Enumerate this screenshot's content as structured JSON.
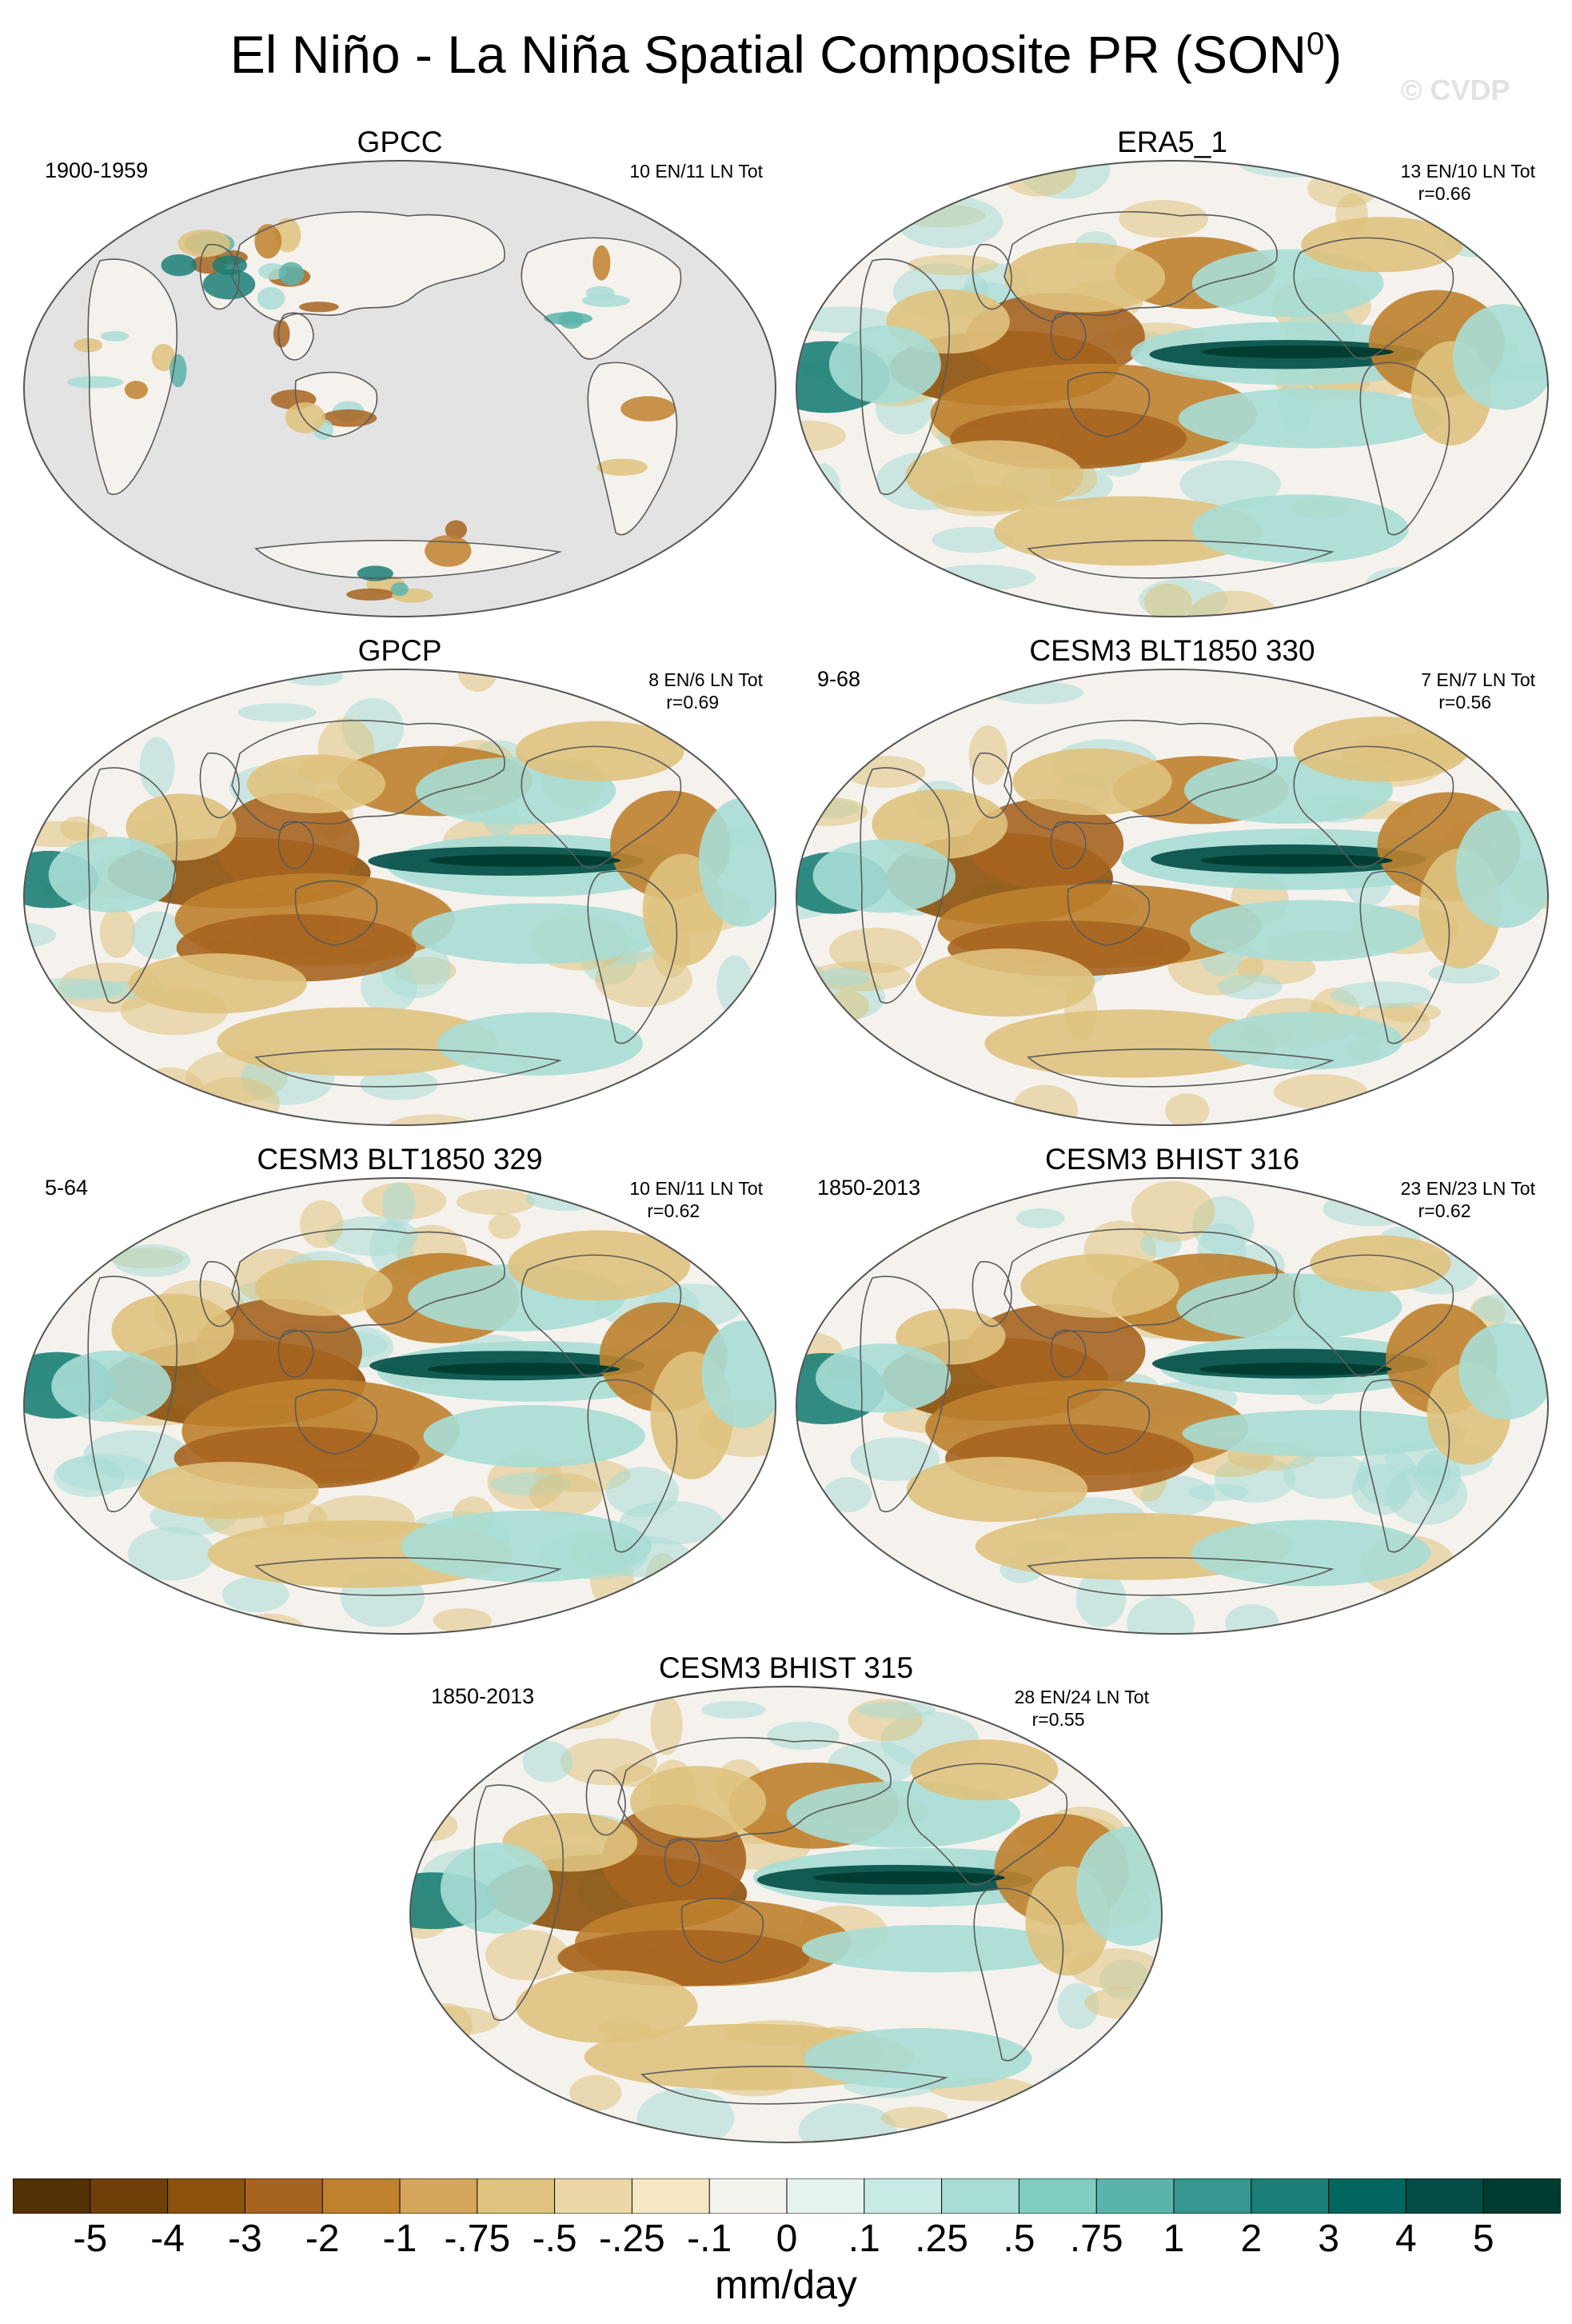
{
  "title": "El Niño - La Niña Spatial Composite PR (SON",
  "title_sup": "0",
  "title_close": ")",
  "watermark": "© CVDP",
  "colors": {
    "land_mask": "#e3e3e3",
    "coastline": "#5a5a5a",
    "outline": "#555555",
    "neutral": "#f5f2ee"
  },
  "panels": [
    {
      "title": "GPCC",
      "years": "1900-1959",
      "counts": "10 EN/11 LN Tot",
      "r": "",
      "ocean_masked": true
    },
    {
      "title": "ERA5_1",
      "years": "",
      "counts": "13 EN/10 LN Tot",
      "r": "r=0.66",
      "ocean_masked": false
    },
    {
      "title": "GPCP",
      "years": "",
      "counts": "8 EN/6 LN Tot",
      "r": "r=0.69",
      "ocean_masked": false
    },
    {
      "title": "CESM3 BLT1850 330",
      "years": "9-68",
      "counts": "7 EN/7 LN Tot",
      "r": "r=0.56",
      "ocean_masked": false
    },
    {
      "title": "CESM3 BLT1850 329",
      "years": "5-64",
      "counts": "10 EN/11 LN Tot",
      "r": "r=0.62",
      "ocean_masked": false
    },
    {
      "title": "CESM3 BHIST 316",
      "years": "1850-2013",
      "counts": "23 EN/23 LN Tot",
      "r": "r=0.62",
      "ocean_masked": false
    },
    {
      "title": "CESM3 BHIST 315",
      "years": "1850-2013",
      "counts": "28 EN/24 LN Tot",
      "r": "r=0.55",
      "ocean_masked": false
    }
  ],
  "colorbar": {
    "units": "mm/day",
    "labels": [
      "-5",
      "-4",
      "-3",
      "-2",
      "-1",
      "-.75",
      "-.5",
      "-.25",
      "-.1",
      "0",
      ".1",
      ".25",
      ".5",
      ".75",
      "1",
      "2",
      "3",
      "4",
      "5"
    ],
    "colors": [
      "#543005",
      "#6f3f0a",
      "#8c510a",
      "#a76420",
      "#bf812d",
      "#d4a55a",
      "#dfc27d",
      "#ecd7a6",
      "#f6e8c3",
      "#f5f3ee",
      "#e6f3ef",
      "#c7eae5",
      "#a8ddd5",
      "#80cdc1",
      "#5ab4ac",
      "#35978f",
      "#1c7f77",
      "#01665e",
      "#014d45",
      "#003c30"
    ]
  }
}
